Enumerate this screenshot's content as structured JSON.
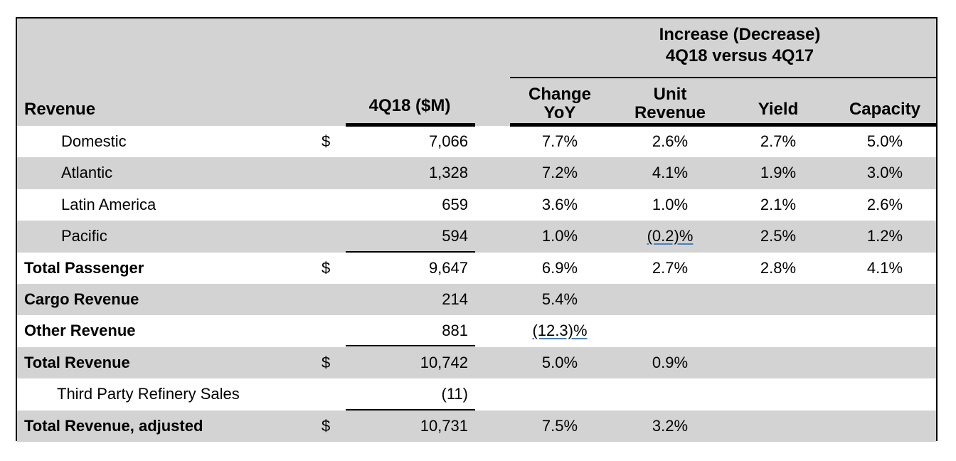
{
  "header": {
    "group_title_line1": "Increase (Decrease)",
    "group_title_line2": "4Q18 versus 4Q17",
    "col_revenue": "Revenue",
    "col_value": "4Q18 ($M)",
    "col_change_line1": "Change",
    "col_change_line2": "YoY",
    "col_unit_line1": "Unit",
    "col_unit_line2": "Revenue",
    "col_yield": "Yield",
    "col_capacity": "Capacity"
  },
  "rows": [
    {
      "label": "Domestic",
      "dollar": "$",
      "value": "7,066",
      "change": "7.7%",
      "unit": "2.6%",
      "yield": "2.7%",
      "capacity": "5.0%"
    },
    {
      "label": "Atlantic",
      "dollar": "",
      "value": "1,328",
      "change": "7.2%",
      "unit": "4.1%",
      "yield": "1.9%",
      "capacity": "3.0%"
    },
    {
      "label": "Latin America",
      "dollar": "",
      "value": "659",
      "change": "3.6%",
      "unit": "1.0%",
      "yield": "2.1%",
      "capacity": "2.6%"
    },
    {
      "label": "Pacific",
      "dollar": "",
      "value": "594",
      "change": "1.0%",
      "unit": "(0.2)%",
      "yield": "2.5%",
      "capacity": "1.2%"
    },
    {
      "label": "Total Passenger",
      "dollar": "$",
      "value": "9,647",
      "change": "6.9%",
      "unit": "2.7%",
      "yield": "2.8%",
      "capacity": "4.1%"
    },
    {
      "label": "Cargo Revenue",
      "dollar": "",
      "value": "214",
      "change": "5.4%",
      "unit": "",
      "yield": "",
      "capacity": ""
    },
    {
      "label": "Other Revenue",
      "dollar": "",
      "value": "881",
      "change": "(12.3)%",
      "unit": "",
      "yield": "",
      "capacity": ""
    },
    {
      "label": "Total Revenue",
      "dollar": "$",
      "value": "10,742",
      "change": "5.0%",
      "unit": "0.9%",
      "yield": "",
      "capacity": ""
    },
    {
      "label": "Third Party Refinery Sales",
      "dollar": "",
      "value": "(11)",
      "change": "",
      "unit": "",
      "yield": "",
      "capacity": ""
    },
    {
      "label": "Total Revenue, adjusted",
      "dollar": "$",
      "value": "10,731",
      "change": "7.5%",
      "unit": "3.2%",
      "yield": "",
      "capacity": ""
    }
  ]
}
